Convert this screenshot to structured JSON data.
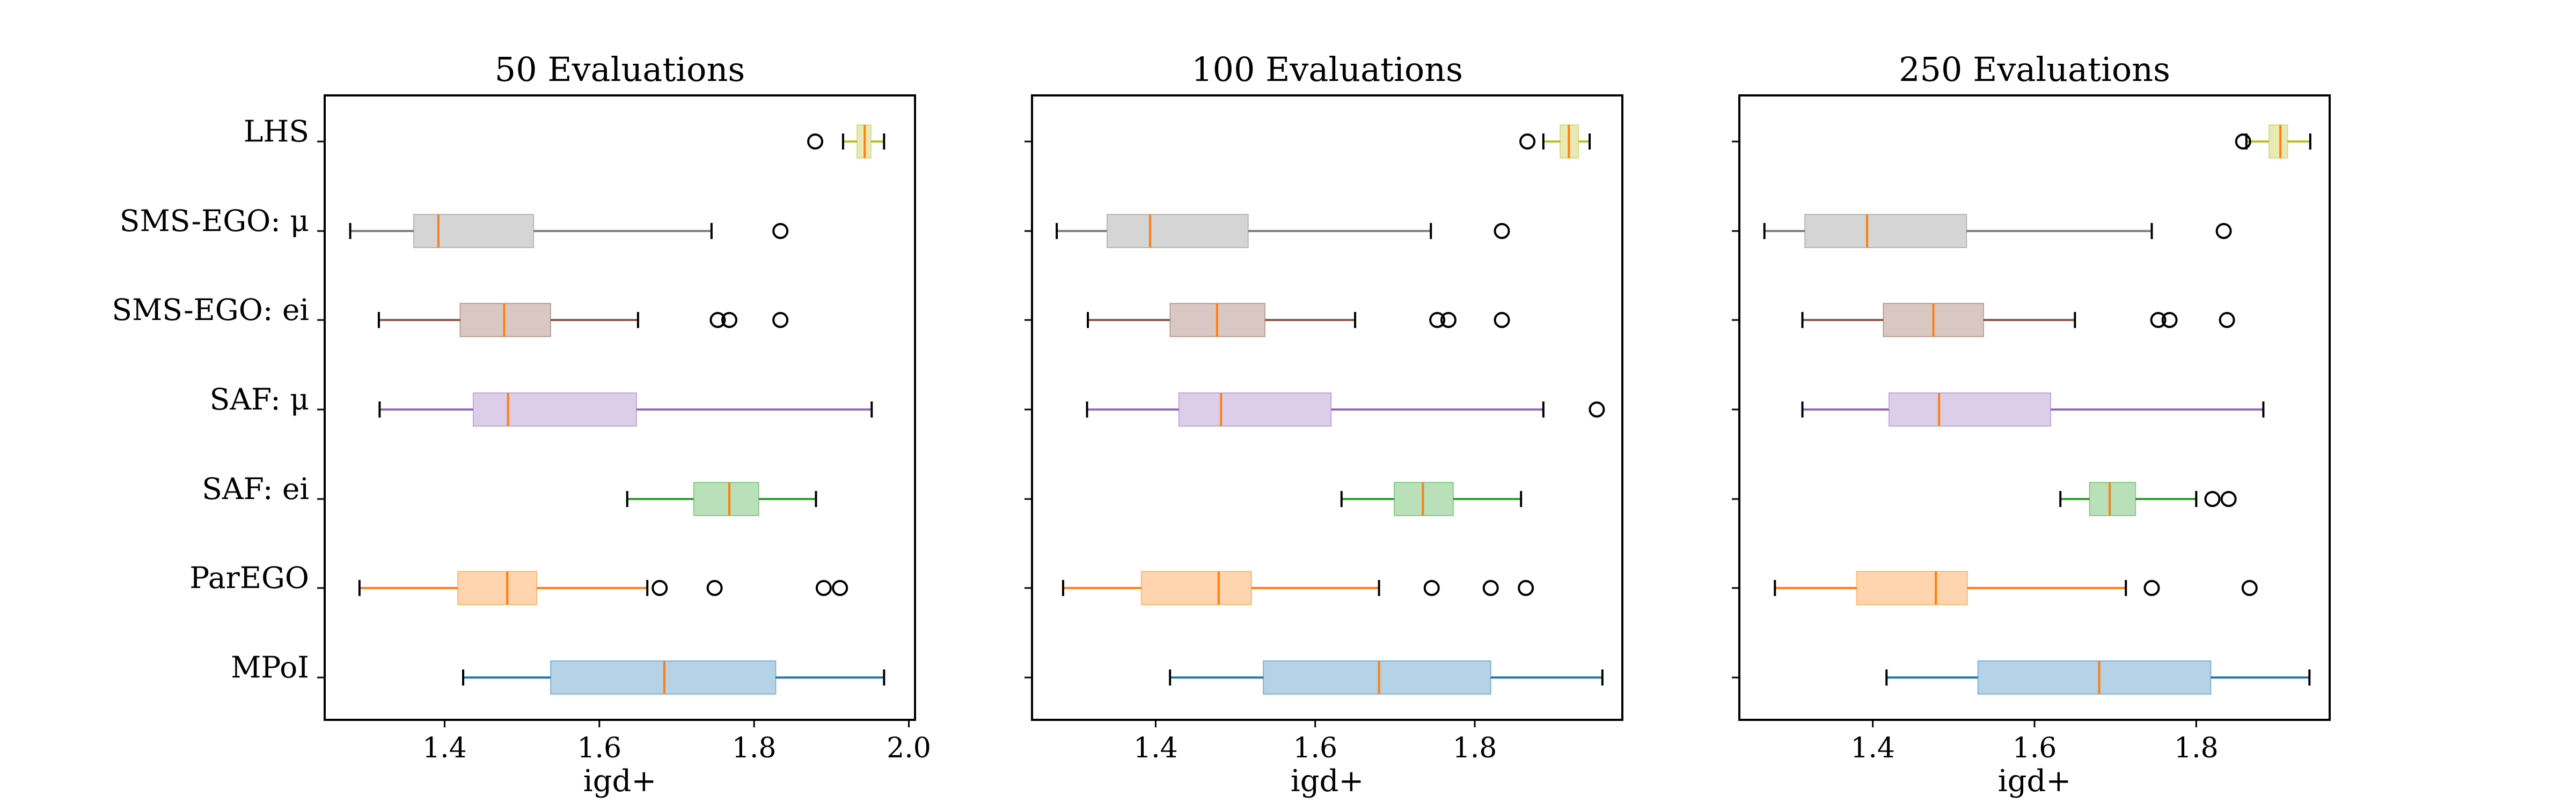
{
  "chart_data": [
    {
      "type": "box",
      "title": "50 Evaluations",
      "xlabel": "igd+",
      "xlim": [
        1.245,
        2.008
      ],
      "xticks": [
        1.4,
        1.6,
        1.8,
        2.0
      ],
      "xtick_labels": [
        "1.4",
        "1.6",
        "1.8",
        "2.0"
      ],
      "series": [
        {
          "name": "LHS",
          "color": "#bcbd22",
          "whisker_low": 1.915,
          "q1": 1.933,
          "median": 1.943,
          "q3": 1.951,
          "whisker_high": 1.968,
          "outliers": [
            1.879
          ]
        },
        {
          "name": "SMS-EGO: μ",
          "color": "#7f7f7f",
          "whisker_low": 1.278,
          "q1": 1.36,
          "median": 1.392,
          "q3": 1.515,
          "whisker_high": 1.745,
          "outliers": [
            1.834
          ]
        },
        {
          "name": "SMS-EGO: ei",
          "color": "#8c564b",
          "whisker_low": 1.315,
          "q1": 1.42,
          "median": 1.477,
          "q3": 1.537,
          "whisker_high": 1.65,
          "outliers": [
            1.753,
            1.768,
            1.834
          ]
        },
        {
          "name": "SAF: μ",
          "color": "#9467bd",
          "whisker_low": 1.316,
          "q1": 1.437,
          "median": 1.482,
          "q3": 1.648,
          "whisker_high": 1.952,
          "outliers": []
        },
        {
          "name": "SAF: ei",
          "color": "#2ca02c",
          "whisker_low": 1.636,
          "q1": 1.722,
          "median": 1.768,
          "q3": 1.806,
          "whisker_high": 1.88,
          "outliers": []
        },
        {
          "name": "ParEGO",
          "color": "#ff7f0e",
          "whisker_low": 1.29,
          "q1": 1.417,
          "median": 1.481,
          "q3": 1.519,
          "whisker_high": 1.662,
          "outliers": [
            1.678,
            1.749,
            1.89,
            1.911
          ]
        },
        {
          "name": "MPoI",
          "color": "#1f77b4",
          "whisker_low": 1.424,
          "q1": 1.537,
          "median": 1.684,
          "q3": 1.828,
          "whisker_high": 1.968,
          "outliers": []
        }
      ]
    },
    {
      "type": "box",
      "title": "100 Evaluations",
      "xlabel": "igd+",
      "xlim": [
        1.245,
        1.985
      ],
      "xticks": [
        1.4,
        1.6,
        1.8
      ],
      "xtick_labels": [
        "1.4",
        "1.6",
        "1.8"
      ],
      "series": [
        {
          "name": "LHS",
          "color": "#bcbd22",
          "whisker_low": 1.886,
          "q1": 1.907,
          "median": 1.918,
          "q3": 1.93,
          "whisker_high": 1.944,
          "outliers": [
            1.866
          ]
        },
        {
          "name": "SMS-EGO: μ",
          "color": "#7f7f7f",
          "whisker_low": 1.276,
          "q1": 1.339,
          "median": 1.393,
          "q3": 1.516,
          "whisker_high": 1.745,
          "outliers": [
            1.834
          ]
        },
        {
          "name": "SMS-EGO: ei",
          "color": "#8c564b",
          "whisker_low": 1.315,
          "q1": 1.418,
          "median": 1.477,
          "q3": 1.537,
          "whisker_high": 1.65,
          "outliers": [
            1.753,
            1.767,
            1.834
          ]
        },
        {
          "name": "SAF: μ",
          "color": "#9467bd",
          "whisker_low": 1.314,
          "q1": 1.429,
          "median": 1.482,
          "q3": 1.62,
          "whisker_high": 1.886,
          "outliers": [
            1.953
          ]
        },
        {
          "name": "SAF: ei",
          "color": "#2ca02c",
          "whisker_low": 1.633,
          "q1": 1.699,
          "median": 1.735,
          "q3": 1.773,
          "whisker_high": 1.858,
          "outliers": []
        },
        {
          "name": "ParEGO",
          "color": "#ff7f0e",
          "whisker_low": 1.284,
          "q1": 1.382,
          "median": 1.479,
          "q3": 1.52,
          "whisker_high": 1.68,
          "outliers": [
            1.746,
            1.82,
            1.864
          ]
        },
        {
          "name": "MPoI",
          "color": "#1f77b4",
          "whisker_low": 1.418,
          "q1": 1.535,
          "median": 1.68,
          "q3": 1.82,
          "whisker_high": 1.96,
          "outliers": []
        }
      ]
    },
    {
      "type": "box",
      "title": "250 Evaluations",
      "xlabel": "igd+",
      "xlim": [
        1.235,
        1.965
      ],
      "xticks": [
        1.4,
        1.6,
        1.8
      ],
      "xtick_labels": [
        "1.4",
        "1.6",
        "1.8"
      ],
      "series": [
        {
          "name": "LHS",
          "color": "#bcbd22",
          "whisker_low": 1.862,
          "q1": 1.89,
          "median": 1.904,
          "q3": 1.913,
          "whisker_high": 1.941,
          "outliers": [
            1.858
          ]
        },
        {
          "name": "SMS-EGO: μ",
          "color": "#7f7f7f",
          "whisker_low": 1.266,
          "q1": 1.316,
          "median": 1.393,
          "q3": 1.516,
          "whisker_high": 1.745,
          "outliers": [
            1.834
          ]
        },
        {
          "name": "SMS-EGO: ei",
          "color": "#8c564b",
          "whisker_low": 1.313,
          "q1": 1.413,
          "median": 1.475,
          "q3": 1.537,
          "whisker_high": 1.65,
          "outliers": [
            1.753,
            1.767,
            1.838
          ]
        },
        {
          "name": "SAF: μ",
          "color": "#9467bd",
          "whisker_low": 1.313,
          "q1": 1.42,
          "median": 1.482,
          "q3": 1.62,
          "whisker_high": 1.883,
          "outliers": []
        },
        {
          "name": "SAF: ei",
          "color": "#2ca02c",
          "whisker_low": 1.632,
          "q1": 1.668,
          "median": 1.693,
          "q3": 1.725,
          "whisker_high": 1.8,
          "outliers": [
            1.82,
            1.84
          ]
        },
        {
          "name": "ParEGO",
          "color": "#ff7f0e",
          "whisker_low": 1.279,
          "q1": 1.38,
          "median": 1.478,
          "q3": 1.517,
          "whisker_high": 1.713,
          "outliers": [
            1.745,
            1.866
          ]
        },
        {
          "name": "MPoI",
          "color": "#1f77b4",
          "whisker_low": 1.417,
          "q1": 1.53,
          "median": 1.68,
          "q3": 1.818,
          "whisker_high": 1.94,
          "outliers": []
        }
      ]
    }
  ]
}
